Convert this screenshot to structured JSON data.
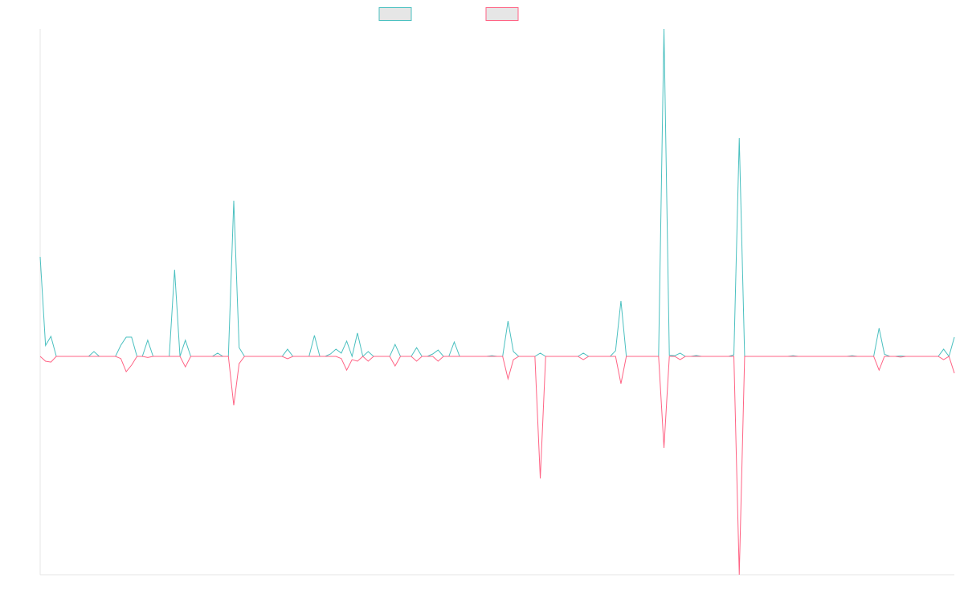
{
  "chart_data": {
    "type": "line",
    "ylim": [
      -100,
      150
    ],
    "legend": "top",
    "series": [
      {
        "color": "#4bc0c0",
        "values": [
          45.6,
          5,
          9.2,
          0,
          0,
          0,
          0,
          0,
          0,
          0,
          2.2,
          0,
          0,
          0,
          0,
          5.1,
          8.8,
          8.8,
          0,
          0,
          7.4,
          0,
          0,
          0,
          0,
          39.7,
          0,
          7.4,
          0,
          0,
          0,
          0,
          0,
          1.5,
          0,
          0,
          71.3,
          4,
          0,
          0,
          0,
          0,
          0,
          0,
          0,
          0,
          3.3,
          0,
          0,
          0,
          0,
          9.6,
          0,
          0,
          1.1,
          3.3,
          1.5,
          7,
          0,
          10.7,
          0,
          2.2,
          0,
          0,
          0,
          0,
          5.5,
          0,
          0,
          0,
          4,
          0,
          0,
          1.1,
          2.9,
          0,
          0,
          6.6,
          0,
          0,
          0,
          0,
          0,
          0,
          0.3,
          0,
          0,
          16.2,
          2.2,
          0,
          0,
          0,
          0,
          1.5,
          0,
          0,
          0,
          0,
          0,
          0,
          0,
          1.5,
          0,
          0,
          0,
          0,
          0,
          2.6,
          25.4,
          0,
          0,
          0,
          0,
          0,
          0,
          0,
          150,
          0.5,
          0.3,
          1.5,
          0,
          0,
          0.4,
          0,
          0,
          0,
          0,
          0,
          0,
          0.7,
          100,
          0,
          0,
          0,
          0,
          0,
          0,
          0,
          0,
          0,
          0.3,
          0,
          0,
          0,
          0,
          0,
          0,
          0,
          0,
          0,
          0,
          0.3,
          0,
          0,
          0,
          0,
          12.9,
          1,
          0,
          0,
          0.2,
          0,
          0,
          0,
          0,
          0,
          0,
          0,
          3.3,
          0,
          8.8
        ]
      },
      {
        "color": "#ff6384",
        "values": [
          0,
          -2.2,
          -2.6,
          0,
          0,
          0,
          0,
          0,
          0,
          0,
          0,
          0,
          0,
          0,
          0,
          -1,
          -7,
          -4,
          0,
          0,
          -0.5,
          0,
          0,
          0,
          0,
          0,
          0,
          -4.8,
          0,
          0,
          0,
          0,
          0,
          0,
          0,
          0,
          -22.4,
          -3.3,
          0,
          0,
          0,
          0,
          0,
          0,
          0,
          0,
          -1.1,
          0,
          0,
          0,
          0,
          0,
          0,
          0,
          0,
          0,
          -1,
          -6.3,
          -1.5,
          -2.2,
          0,
          -2.2,
          0,
          0,
          0,
          0,
          -4.4,
          0,
          0,
          0,
          -2.2,
          0,
          0,
          0,
          -2.2,
          0,
          0,
          0,
          0,
          0,
          0,
          0,
          0,
          0,
          0,
          0,
          0,
          -10.3,
          -1.5,
          0,
          0,
          0,
          0,
          -55.9,
          0,
          0,
          0,
          0,
          0,
          0,
          0,
          -1.5,
          0,
          0,
          0,
          0,
          0,
          0,
          -12.5,
          0,
          0,
          0,
          0,
          0,
          0,
          0,
          -41.9,
          0,
          0,
          -1.5,
          0,
          0,
          0,
          0,
          0,
          0,
          0,
          0,
          0,
          0,
          -100,
          0,
          0,
          0,
          0,
          0,
          0,
          0,
          0,
          0,
          0,
          0,
          0,
          0,
          0,
          0,
          0,
          0,
          0,
          0,
          0,
          0,
          0,
          0,
          0,
          0,
          -6.3,
          0,
          0,
          0,
          -0.3,
          0,
          0,
          0,
          0,
          0,
          0,
          0,
          -1.5,
          0,
          -7.7
        ]
      }
    ]
  }
}
